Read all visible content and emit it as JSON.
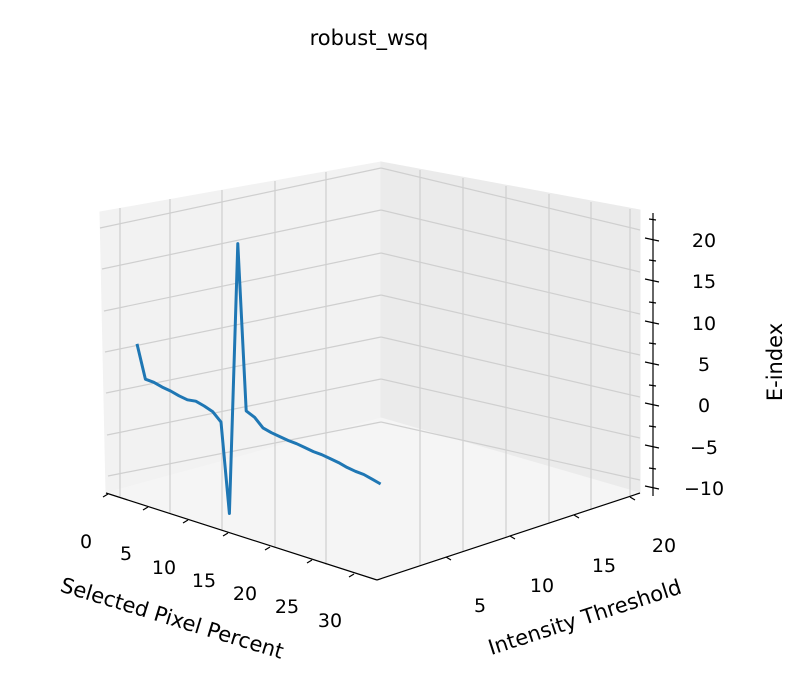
{
  "chart_data": {
    "type": "line",
    "projection": "3d",
    "title": "robust_wsq",
    "xlabel": "Selected Pixel Percent",
    "ylabel": "Intensity Threshold",
    "zlabel": "E-index",
    "x_ticks": [
      "0",
      "5",
      "10",
      "15",
      "20",
      "25",
      "30"
    ],
    "y_ticks": [
      "5",
      "10",
      "15",
      "20"
    ],
    "z_ticks": [
      "20",
      "15",
      "10",
      "5",
      "0",
      "−5",
      "−10"
    ],
    "grid": true,
    "line_color": "#1f77b4",
    "series": [
      {
        "name": "",
        "x": [
          1,
          2,
          3,
          4,
          5,
          6,
          7,
          8,
          9,
          10,
          11,
          12,
          13,
          14,
          15,
          16,
          17,
          18,
          19,
          20,
          21,
          22,
          23,
          24,
          25,
          26,
          27,
          28,
          29,
          30
        ],
        "y": [
          1,
          2,
          3,
          4,
          5,
          6,
          7,
          8,
          9,
          10,
          11,
          12,
          13,
          14,
          15,
          16,
          17,
          18,
          19,
          20,
          21,
          22,
          23,
          24,
          25,
          26,
          27,
          28,
          29,
          30
        ],
        "z": [
          4.5,
          0.5,
          0.4,
          0.1,
          -0.1,
          -0.4,
          -0.6,
          -0.5,
          -0.8,
          -1.2,
          -2.2,
          -13,
          20,
          0,
          -0.5,
          -1.5,
          -1.8,
          -2.0,
          -2.2,
          -2.3,
          -2.5,
          -2.7,
          -2.8,
          -3.0,
          -3.2,
          -3.5,
          -3.7,
          -3.8,
          -4.1,
          -4.4
        ]
      }
    ]
  }
}
